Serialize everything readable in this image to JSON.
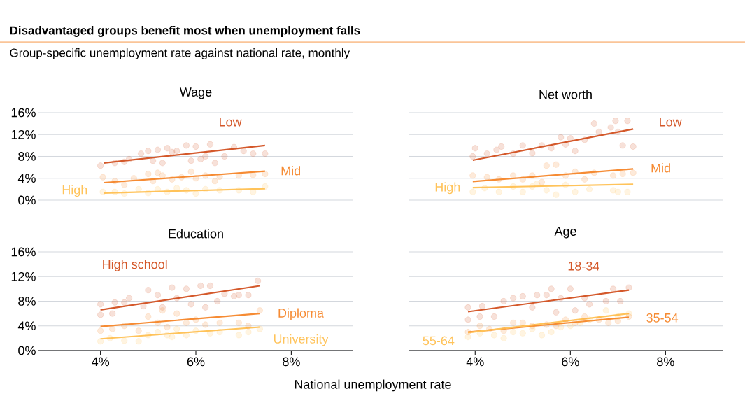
{
  "chart_data": [
    {
      "type": "scatter",
      "title": "Wage",
      "annotations": [
        "Disadvantaged groups benefit most when unemployment falls",
        "Group-specific unemployment rate against national rate, monthly"
      ],
      "xlim": [
        2.7,
        9.3
      ],
      "ylim": [
        0,
        16
      ],
      "yticks": [
        {
          "value": 0,
          "label": "0%"
        },
        {
          "value": 4,
          "label": "4%"
        },
        {
          "value": 8,
          "label": "8%"
        },
        {
          "value": 12,
          "label": "12%"
        },
        {
          "value": 16,
          "label": "16%"
        }
      ],
      "tick_labels": "y",
      "grid": "y",
      "series": [
        {
          "name": "Low",
          "marker": "circle",
          "color": "#d4582a",
          "x": [
            4.0,
            4.3,
            4.5,
            4.6,
            4.85,
            5.0,
            5.1,
            5.2,
            5.3,
            5.4,
            5.5,
            5.6,
            5.8,
            5.9,
            6.0,
            6.1,
            6.2,
            6.3,
            6.4,
            6.6,
            6.8,
            7.0,
            7.2,
            7.45
          ],
          "values": [
            6.3,
            6.8,
            7.0,
            7.5,
            8.5,
            9.0,
            7.2,
            9.2,
            6.8,
            9.5,
            8.8,
            9.0,
            10.0,
            7.2,
            9.8,
            7.5,
            8.0,
            10.2,
            6.8,
            8.0,
            9.7,
            9.0,
            8.5,
            8.5
          ]
        },
        {
          "name": "Mid",
          "marker": "circle",
          "color": "#f68b33",
          "x": [
            4.05,
            4.3,
            4.5,
            4.7,
            5.0,
            5.1,
            5.2,
            5.3,
            5.5,
            5.7,
            5.9,
            6.0,
            6.2,
            6.4,
            6.5,
            6.9,
            7.2,
            7.45
          ],
          "values": [
            4.2,
            3.5,
            2.8,
            4.0,
            4.8,
            3.5,
            5.0,
            4.5,
            3.8,
            4.2,
            5.2,
            4.0,
            4.5,
            3.5,
            4.3,
            4.5,
            4.6,
            4.8
          ]
        },
        {
          "name": "High",
          "marker": "circle",
          "color": "#ffc35a",
          "x": [
            4.05,
            4.3,
            4.5,
            4.8,
            5.0,
            5.2,
            5.4,
            5.6,
            5.8,
            6.0,
            6.2,
            6.5,
            6.9,
            7.2,
            7.45
          ],
          "values": [
            1.5,
            1.5,
            1.2,
            2.0,
            1.3,
            2.0,
            1.5,
            2.2,
            1.8,
            1.2,
            2.0,
            1.8,
            1.8,
            1.5,
            2.5
          ]
        },
        {
          "type": "line",
          "marker": "none",
          "color": "#d4582a",
          "x": [
            4.07,
            7.45
          ],
          "values": [
            6.8,
            10.0
          ]
        },
        {
          "type": "line",
          "marker": "none",
          "color": "#f68b33",
          "x": [
            4.07,
            7.45
          ],
          "values": [
            3.2,
            5.3
          ]
        },
        {
          "type": "line",
          "marker": "none",
          "color": "#ffc35a",
          "x": [
            4.07,
            7.45
          ],
          "values": [
            1.3,
            2.1
          ]
        }
      ]
    },
    {
      "type": "scatter",
      "title": "Net worth",
      "xlim": [
        2.6,
        9.2
      ],
      "ylim": [
        0,
        16
      ],
      "yticks": [
        0,
        4,
        8,
        12,
        16
      ],
      "tick_labels": false,
      "grid": "y",
      "series": [
        {
          "name": "Low",
          "marker": "circle",
          "color": "#d4582a",
          "x": [
            3.95,
            4.0,
            4.25,
            4.45,
            4.55,
            4.8,
            5.0,
            5.2,
            5.4,
            5.6,
            5.8,
            5.9,
            6.0,
            6.1,
            6.3,
            6.5,
            6.6,
            6.85,
            6.95,
            7.0,
            7.1,
            7.2,
            7.32
          ],
          "values": [
            8.0,
            9.5,
            8.5,
            9.2,
            9.8,
            8.5,
            10.0,
            8.6,
            10.0,
            9.5,
            11.5,
            10.2,
            11.3,
            9.0,
            11.0,
            14.0,
            12.5,
            13.3,
            14.5,
            12.5,
            10.0,
            14.5,
            9.8
          ]
        },
        {
          "name": "Mid",
          "marker": "circle",
          "color": "#f68b33",
          "x": [
            3.95,
            4.25,
            4.5,
            4.8,
            5.0,
            5.2,
            5.4,
            5.5,
            5.7,
            5.9,
            6.1,
            6.3,
            6.5,
            6.9,
            7.1,
            7.32
          ],
          "values": [
            4.5,
            4.2,
            3.8,
            4.5,
            3.8,
            4.5,
            3.3,
            6.3,
            6.5,
            4.5,
            5.2,
            3.8,
            5.0,
            4.5,
            4.8,
            5.0
          ]
        },
        {
          "name": "High",
          "marker": "circle",
          "color": "#ffc35a",
          "x": [
            3.95,
            4.2,
            4.5,
            4.8,
            5.0,
            5.2,
            5.3,
            5.5,
            5.7,
            5.9,
            6.1,
            6.4,
            6.9,
            7.0,
            7.2
          ],
          "values": [
            1.5,
            2.2,
            1.5,
            2.5,
            1.5,
            2.5,
            3.0,
            1.8,
            1.0,
            2.8,
            1.5,
            2.0,
            1.8,
            1.5,
            1.5
          ]
        },
        {
          "type": "line",
          "marker": "none",
          "color": "#d4582a",
          "x": [
            3.95,
            7.32
          ],
          "values": [
            7.3,
            13.0
          ]
        },
        {
          "type": "line",
          "marker": "none",
          "color": "#f68b33",
          "x": [
            3.95,
            7.32
          ],
          "values": [
            3.4,
            5.7
          ]
        },
        {
          "type": "line",
          "marker": "none",
          "color": "#ffc35a",
          "x": [
            3.95,
            7.32
          ],
          "values": [
            2.3,
            2.9
          ]
        }
      ]
    },
    {
      "type": "scatter",
      "title": "Education",
      "xlabel": "National unemployment rate",
      "xlim": [
        2.7,
        9.3
      ],
      "ylim": [
        0,
        16
      ],
      "xticks": [
        {
          "value": 4,
          "label": "4%"
        },
        {
          "value": 6,
          "label": "6%"
        },
        {
          "value": 8,
          "label": "8%"
        }
      ],
      "yticks": [
        {
          "value": 0,
          "label": "0%"
        },
        {
          "value": 4,
          "label": "4%"
        },
        {
          "value": 8,
          "label": "8%"
        },
        {
          "value": 12,
          "label": "12%"
        },
        {
          "value": 16,
          "label": "16%"
        }
      ],
      "grid": "y",
      "series": [
        {
          "name": "High school",
          "marker": "circle",
          "color": "#d4582a",
          "x": [
            4.0,
            4.0,
            4.25,
            4.3,
            4.5,
            4.6,
            4.9,
            5.0,
            5.2,
            5.3,
            5.5,
            5.6,
            5.8,
            5.9,
            6.1,
            6.2,
            6.3,
            6.45,
            6.6,
            6.8,
            6.9,
            7.1,
            7.3
          ],
          "values": [
            7.5,
            5.8,
            6.0,
            7.8,
            7.8,
            8.5,
            7.2,
            9.8,
            9.0,
            7.0,
            10.2,
            8.5,
            10.0,
            7.5,
            10.5,
            7.0,
            10.5,
            8.0,
            9.2,
            8.8,
            9.0,
            9.0,
            11.3
          ]
        },
        {
          "name": "Diploma",
          "marker": "circle",
          "color": "#f68b33",
          "x": [
            4.0,
            4.25,
            4.5,
            4.8,
            5.0,
            5.2,
            5.3,
            5.4,
            5.6,
            5.8,
            6.0,
            6.2,
            6.5,
            6.9,
            7.1,
            7.34
          ],
          "values": [
            3.2,
            3.5,
            4.0,
            3.2,
            5.5,
            4.5,
            6.5,
            3.8,
            6.0,
            4.5,
            5.0,
            4.2,
            4.5,
            4.5,
            4.0,
            6.5
          ]
        },
        {
          "name": "University",
          "marker": "circle",
          "color": "#ffc35a",
          "x": [
            4.0,
            4.2,
            4.5,
            4.8,
            5.0,
            5.2,
            5.4,
            5.5,
            5.6,
            5.8,
            6.0,
            6.3,
            6.5,
            6.9,
            7.1,
            7.34
          ],
          "values": [
            1.5,
            2.0,
            1.6,
            1.5,
            2.5,
            3.0,
            2.5,
            2.2,
            3.5,
            2.5,
            3.2,
            2.8,
            3.0,
            2.5,
            3.0,
            3.5
          ]
        },
        {
          "type": "line",
          "marker": "none",
          "color": "#d4582a",
          "x": [
            4.0,
            7.34
          ],
          "values": [
            6.6,
            10.5
          ]
        },
        {
          "type": "line",
          "marker": "none",
          "color": "#f68b33",
          "x": [
            4.0,
            7.34
          ],
          "values": [
            3.9,
            6.0
          ]
        },
        {
          "type": "line",
          "marker": "none",
          "color": "#ffc35a",
          "x": [
            4.0,
            7.34
          ],
          "values": [
            1.9,
            3.8
          ]
        }
      ]
    },
    {
      "type": "scatter",
      "title": "Age",
      "xlim": [
        2.6,
        9.2
      ],
      "ylim": [
        0,
        16
      ],
      "xticks": [
        {
          "value": 4,
          "label": "4%"
        },
        {
          "value": 6,
          "label": "6%"
        },
        {
          "value": 8,
          "label": "8%"
        }
      ],
      "yticks": [
        0,
        4,
        8,
        12,
        16
      ],
      "tick_labels": "x",
      "grid": "y",
      "series": [
        {
          "name": "18-34",
          "marker": "circle",
          "color": "#d4582a",
          "x": [
            3.85,
            3.85,
            4.1,
            4.15,
            4.4,
            4.6,
            4.8,
            5.0,
            5.2,
            5.3,
            5.5,
            5.6,
            5.7,
            5.8,
            6.0,
            6.1,
            6.3,
            6.4,
            6.75,
            6.9,
            7.05,
            7.23
          ],
          "values": [
            7.0,
            5.0,
            5.5,
            7.2,
            5.5,
            8.0,
            8.5,
            8.8,
            7.0,
            9.0,
            9.0,
            10.0,
            6.2,
            8.5,
            10.0,
            6.5,
            8.5,
            7.5,
            8.0,
            10.0,
            8.0,
            10.2
          ]
        },
        {
          "name": "35-54",
          "marker": "circle",
          "color": "#f68b33",
          "x": [
            3.85,
            4.1,
            4.3,
            4.6,
            4.8,
            5.0,
            5.2,
            5.5,
            5.7,
            5.9,
            6.1,
            6.3,
            6.6,
            6.8,
            7.0,
            7.23
          ],
          "values": [
            3.0,
            4.0,
            3.5,
            3.2,
            4.5,
            4.5,
            4.0,
            4.2,
            4.0,
            5.0,
            4.5,
            5.5,
            5.0,
            4.5,
            4.8,
            5.5
          ]
        },
        {
          "name": "55-64",
          "marker": "circle",
          "color": "#ffc35a",
          "x": [
            3.85,
            4.1,
            4.4,
            4.6,
            4.8,
            5.0,
            5.2,
            5.4,
            5.6,
            5.8,
            6.0,
            6.2,
            6.4,
            6.75,
            7.0,
            7.23
          ],
          "values": [
            2.2,
            2.8,
            2.5,
            2.0,
            3.0,
            2.8,
            3.5,
            2.5,
            3.0,
            3.8,
            4.0,
            4.5,
            5.0,
            6.5,
            5.5,
            6.0
          ]
        },
        {
          "type": "line",
          "marker": "none",
          "color": "#d4582a",
          "x": [
            3.85,
            7.23
          ],
          "values": [
            6.3,
            9.8
          ]
        },
        {
          "type": "line",
          "marker": "none",
          "color": "#f68b33",
          "x": [
            3.85,
            7.23
          ],
          "values": [
            3.0,
            5.4
          ]
        },
        {
          "type": "line",
          "marker": "none",
          "color": "#ffc35a",
          "x": [
            3.85,
            7.23
          ],
          "values": [
            2.9,
            6.0
          ]
        }
      ]
    }
  ]
}
